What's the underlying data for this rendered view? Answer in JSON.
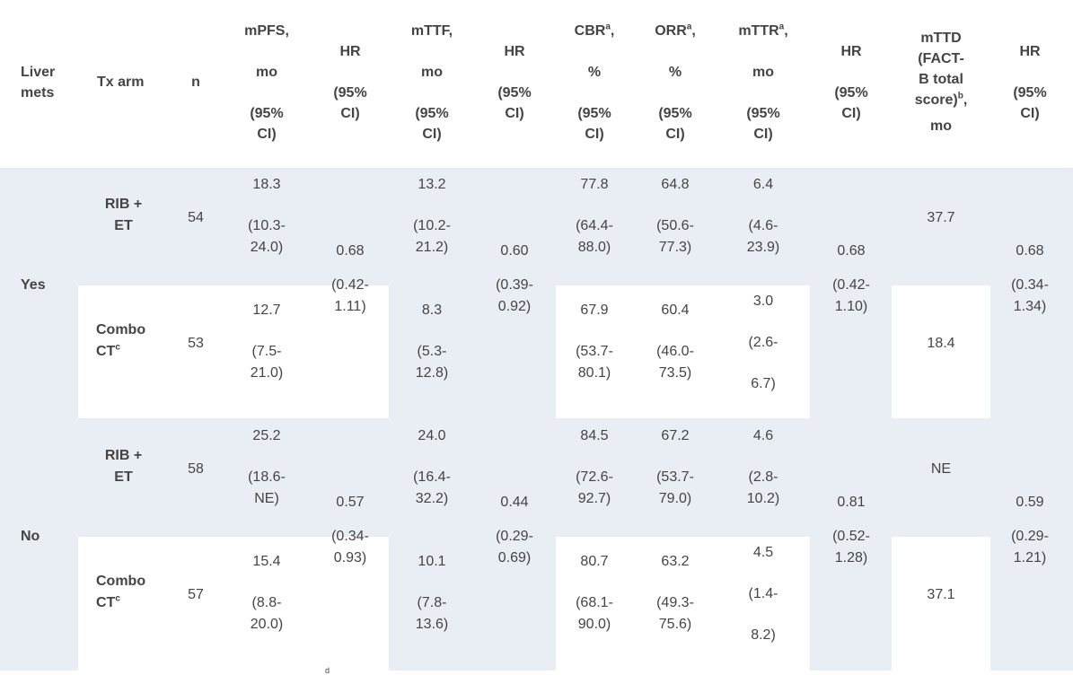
{
  "header": {
    "liver_mets": [
      "Liver",
      "mets"
    ],
    "tx_arm": "Tx arm",
    "n": "n",
    "mpfs": [
      "mPFS,",
      "mo",
      "(95%",
      "CI)"
    ],
    "hr": [
      "HR",
      "(95%",
      "CI)"
    ],
    "mttf": [
      "mTTF,",
      "mo",
      "(95%",
      "CI)"
    ],
    "cbr": {
      "label": "CBR",
      "sup": "a",
      "lines": [
        ",",
        "%",
        "(95%",
        "CI)"
      ]
    },
    "orr": {
      "label": "ORR",
      "sup": "a",
      "lines": [
        ",",
        "%",
        "(95%",
        "CI)"
      ]
    },
    "mttr": {
      "label": "mTTR",
      "sup": "a",
      "lines": [
        ",",
        "mo",
        "(95%",
        "CI)"
      ]
    },
    "mttd": {
      "lines": [
        "mTTD",
        "(FACT-",
        "B total",
        "score)"
      ],
      "sup": "b",
      "comma": ",",
      "unit": "mo"
    }
  },
  "groups": [
    {
      "liver_mets": "Yes",
      "hr_pfs": [
        "0.68",
        "(0.42-",
        "1.11)"
      ],
      "hr_ttf": [
        "0.60",
        "(0.39-",
        "0.92)"
      ],
      "hr_ttr": [
        "0.68",
        "(0.42-",
        "1.10)"
      ],
      "hr_ttd": [
        "0.68",
        "(0.34-",
        "1.34)"
      ],
      "rows": [
        {
          "arm": [
            "RIB +",
            "ET"
          ],
          "arm_sup": "",
          "n": "54",
          "mpfs": [
            "18.3",
            "(10.3-",
            "24.0)"
          ],
          "mttf": [
            "13.2",
            "(10.2-",
            "21.2)"
          ],
          "cbr": [
            "77.8",
            "(64.4-",
            "88.0)"
          ],
          "orr": [
            "64.8",
            "(50.6-",
            "77.3)"
          ],
          "mttr": [
            "6.4",
            "(4.6-",
            "23.9)"
          ],
          "mttd": "37.7"
        },
        {
          "arm": [
            "Combo",
            "CT"
          ],
          "arm_sup": "c",
          "n": "53",
          "mpfs": [
            "12.7",
            "(7.5-",
            "21.0)"
          ],
          "mttf": [
            "8.3",
            "(5.3-",
            "12.8)"
          ],
          "cbr": [
            "67.9",
            "(53.7-",
            "80.1)"
          ],
          "orr": [
            "60.4",
            "(46.0-",
            "73.5)"
          ],
          "mttr": [
            "3.0",
            "(2.6-",
            "6.7)"
          ],
          "mttd": "18.4"
        }
      ]
    },
    {
      "liver_mets": "No",
      "hr_pfs": [
        "0.57",
        "(0.34-",
        "0.93)"
      ],
      "hr_ttf": [
        "0.44",
        "(0.29-",
        "0.69)"
      ],
      "hr_ttr": [
        "0.81",
        "(0.52-",
        "1.28)"
      ],
      "hr_ttd": [
        "0.59",
        "(0.29-",
        "1.21)"
      ],
      "rows": [
        {
          "arm": [
            "RIB +",
            "ET"
          ],
          "arm_sup": "",
          "n": "58",
          "mpfs": [
            "25.2",
            "(18.6-",
            "NE)"
          ],
          "mttf": [
            "24.0",
            "(16.4-",
            "32.2)"
          ],
          "cbr": [
            "84.5",
            "(72.6-",
            "92.7)"
          ],
          "orr": [
            "67.2",
            "(53.7-",
            "79.0)"
          ],
          "mttr": [
            "4.6",
            "(2.8-",
            "10.2)"
          ],
          "mttd": "NE"
        },
        {
          "arm": [
            "Combo",
            "CT"
          ],
          "arm_sup": "c",
          "n": "57",
          "mpfs": [
            "15.4",
            "(8.8-",
            "20.0)"
          ],
          "mttf": [
            "10.1",
            "(7.8-",
            "13.6)"
          ],
          "cbr": [
            "80.7",
            "(68.1-",
            "90.0)"
          ],
          "orr": [
            "63.2",
            "(49.3-",
            "75.6)"
          ],
          "mttr": [
            "4.5",
            "(1.4-",
            "8.2)"
          ],
          "mttd": "37.1"
        }
      ]
    }
  ],
  "footnote_mark": "d"
}
